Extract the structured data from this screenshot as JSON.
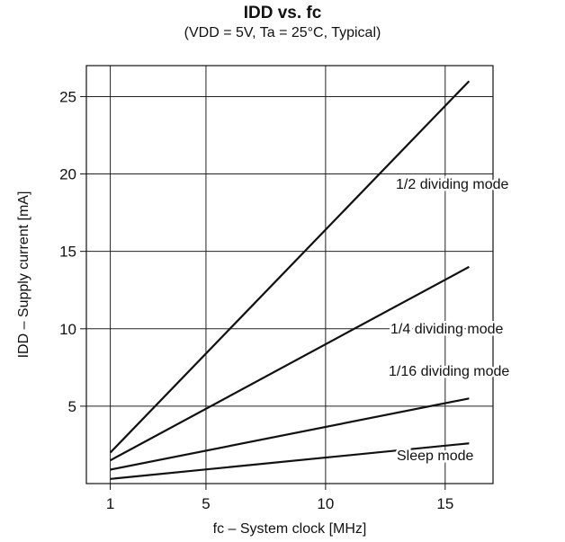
{
  "chart_data": {
    "type": "line",
    "title": "IDD vs. fc",
    "subtitle": "(VDD = 5V, Ta = 25°C, Typical)",
    "xlabel": "fc – System clock [MHz]",
    "ylabel": "IDD – Supply current [mA]",
    "xlim": [
      0,
      17
    ],
    "ylim": [
      0,
      27
    ],
    "xticks": [
      1,
      5,
      10,
      15
    ],
    "yticks": [
      5,
      10,
      15,
      20,
      25
    ],
    "grid": true,
    "series": [
      {
        "name": "1/2 dividing mode",
        "x": [
          1,
          16
        ],
        "y": [
          2.0,
          26.0
        ]
      },
      {
        "name": "1/4 dividing mode",
        "x": [
          1,
          16
        ],
        "y": [
          1.5,
          14.0
        ]
      },
      {
        "name": "1/16 dividing mode",
        "x": [
          1,
          16
        ],
        "y": [
          0.9,
          5.5
        ]
      },
      {
        "name": "Sleep mode",
        "x": [
          1,
          16
        ],
        "y": [
          0.3,
          2.6
        ]
      }
    ]
  }
}
